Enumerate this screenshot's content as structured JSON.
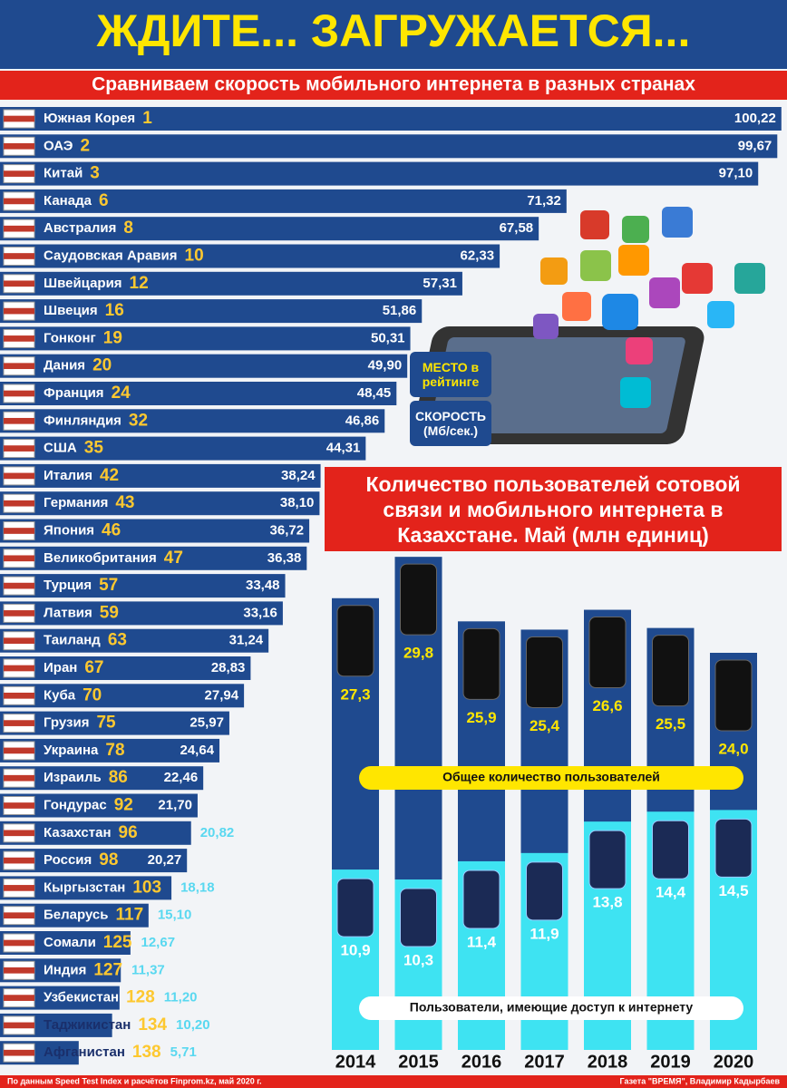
{
  "header": {
    "title": "ЖДИТЕ... ЗАГРУЖАЕТСЯ...",
    "subtitle": "Сравниваем скорость мобильного интернета в разных странах"
  },
  "chart_data": [
    {
      "type": "hbar",
      "legend_rank": "МЕСТО в рейтинге",
      "legend_speed": "СКОРОСТЬ (Мб/сек.)",
      "color": "#1f4a8f",
      "categories": [
        "Южная Корея",
        "ОАЭ",
        "Китай",
        "Канада",
        "Австралия",
        "Саудовская Аравия",
        "Швейцария",
        "Швеция",
        "Гонконг",
        "Дания",
        "Франция",
        "Финляндия",
        "США",
        "Италия",
        "Германия",
        "Япония",
        "Великобритания",
        "Турция",
        "Латвия",
        "Таиланд",
        "Иран",
        "Куба",
        "Грузия",
        "Украина",
        "Израиль",
        "Гондурас",
        "Казахстан",
        "Россия",
        "Кыргызстан",
        "Беларусь",
        "Сомали",
        "Индия",
        "Узбекистан",
        "Таджикистан",
        "Афганистан"
      ],
      "ranks": [
        1,
        2,
        3,
        6,
        8,
        10,
        12,
        16,
        19,
        20,
        24,
        32,
        35,
        42,
        43,
        46,
        47,
        57,
        59,
        63,
        67,
        70,
        75,
        78,
        86,
        92,
        96,
        98,
        103,
        117,
        125,
        127,
        128,
        134,
        138
      ],
      "values": [
        100.22,
        99.67,
        97.1,
        71.32,
        67.58,
        62.33,
        57.31,
        51.86,
        50.31,
        49.9,
        48.45,
        46.86,
        44.31,
        38.24,
        38.1,
        36.72,
        36.38,
        33.48,
        33.16,
        31.24,
        28.83,
        27.94,
        25.97,
        24.64,
        22.46,
        21.7,
        20.82,
        20.27,
        18.18,
        15.1,
        12.67,
        11.37,
        11.2,
        10.2,
        5.71
      ],
      "value_labels": [
        "100,22",
        "99,67",
        "97,10",
        "71,32",
        "67,58",
        "62,33",
        "57,31",
        "51,86",
        "50,31",
        "49,90",
        "48,45",
        "46,86",
        "44,31",
        "38,24",
        "38,10",
        "36,72",
        "36,38",
        "33,48",
        "33,16",
        "31,24",
        "28,83",
        "27,94",
        "25,97",
        "24,64",
        "22,46",
        "21,70",
        "20,82",
        "20,27",
        "18,18",
        "15,10",
        "12,67",
        "11,37",
        "11,20",
        "10,20",
        "5,71"
      ]
    },
    {
      "type": "bar",
      "title": "Количество пользователей сотовой связи и мобильного интернета в Казахстане. Май (млн единиц)",
      "categories": [
        "2014",
        "2015",
        "2016",
        "2017",
        "2018",
        "2019",
        "2020"
      ],
      "series": [
        {
          "name": "Общее количество пользователей",
          "color": "#1f4a8f",
          "values": [
            27.3,
            29.8,
            25.9,
            25.4,
            26.6,
            25.5,
            24.0
          ],
          "value_labels": [
            "27,3",
            "29,8",
            "25,9",
            "25,4",
            "26,6",
            "25,5",
            "24,0"
          ]
        },
        {
          "name": "Пользователи, имеющие доступ к интернету",
          "color": "#3ee3f2",
          "values": [
            10.9,
            10.3,
            11.4,
            11.9,
            13.8,
            14.4,
            14.5
          ],
          "value_labels": [
            "10,9",
            "10,3",
            "11,4",
            "11,9",
            "13,8",
            "14,4",
            "14,5"
          ]
        }
      ]
    }
  ],
  "footer": {
    "source": "По данным Speed Test Index и расчётов Finprom.kz, май 2020 г.",
    "credit": "Газета \"ВРЕМЯ\", Владимир Кадырбаев"
  }
}
